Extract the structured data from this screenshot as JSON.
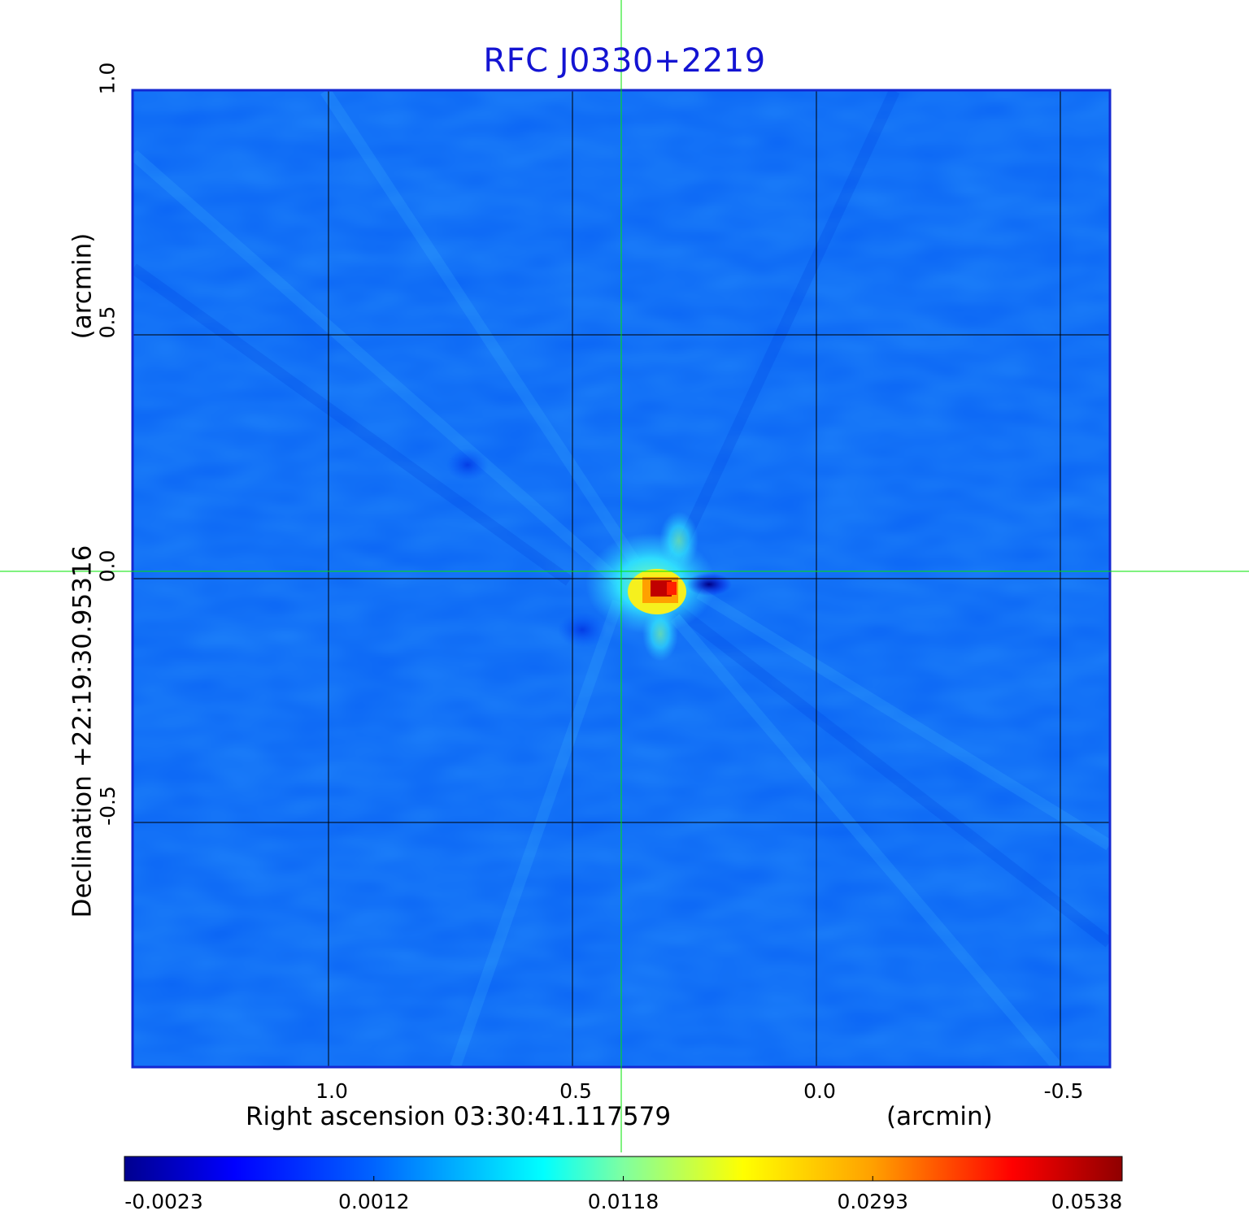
{
  "chart_data": {
    "type": "heatmap",
    "title": "RFC J0330+2219",
    "xlabel": "Right ascension  03:30:41.117579",
    "x_unit": "(arcmin)",
    "ylabel": "Declination  +22:19:30.95316",
    "y_unit": "(arcmin)",
    "xlim": [
      1.4,
      -0.6
    ],
    "ylim": [
      -1.0,
      1.0
    ],
    "x_ticks": [
      1.0,
      0.5,
      0.0,
      -0.5
    ],
    "x_tick_labels": [
      "1.0",
      "0.5",
      "0.0",
      "-0.5"
    ],
    "y_ticks": [
      1.0,
      0.5,
      0.0,
      -0.5
    ],
    "y_tick_labels": [
      "1.0",
      "0.5",
      "0.0",
      "-0.5"
    ],
    "grid": true,
    "colormap": "jet",
    "background_level": 0.0012,
    "peak": {
      "x": 0.32,
      "y": -0.01,
      "value": 0.0538
    },
    "negative_sidelobe": {
      "x": 0.22,
      "y": -0.005,
      "value": -0.0023
    },
    "crosshair": {
      "x": 0.4,
      "y": 0.015
    },
    "colorbar": {
      "ticks": [
        -0.0023,
        0.0012,
        0.0118,
        0.0293,
        0.0538
      ],
      "tick_labels": [
        "-0.0023",
        "0.0012",
        "0.0118",
        "0.0293",
        "0.0538"
      ]
    },
    "colors": {
      "title": "#1414d2",
      "frame": "#1428d2",
      "grid": "#000000",
      "crosshair": "#00e600"
    }
  }
}
